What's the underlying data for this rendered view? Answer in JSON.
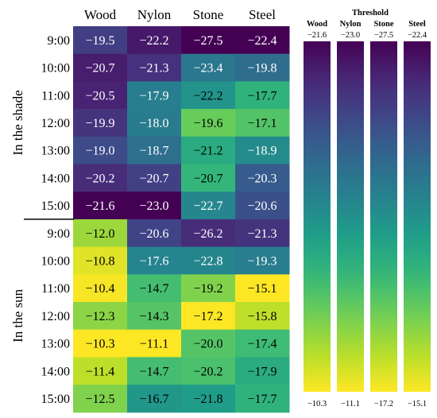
{
  "chart_data": {
    "type": "heatmap",
    "columns": [
      "Wood",
      "Nylon",
      "Stone",
      "Steel"
    ],
    "groups": [
      {
        "label": "In the shade",
        "rows": [
          {
            "time": "9:00",
            "values": [
              "−19.5",
              "−22.2",
              "−27.5",
              "−22.4"
            ]
          },
          {
            "time": "10:00",
            "values": [
              "−20.7",
              "−21.3",
              "−23.4",
              "−19.8"
            ]
          },
          {
            "time": "11:00",
            "values": [
              "−20.5",
              "−17.9",
              "−22.2",
              "−17.7"
            ]
          },
          {
            "time": "12:00",
            "values": [
              "−19.9",
              "−18.0",
              "−19.6",
              "−17.1"
            ]
          },
          {
            "time": "13:00",
            "values": [
              "−19.0",
              "−18.7",
              "−21.2",
              "−18.9"
            ]
          },
          {
            "time": "14:00",
            "values": [
              "−20.2",
              "−20.7",
              "−20.7",
              "−20.3"
            ]
          },
          {
            "time": "15:00",
            "values": [
              "−21.6",
              "−23.0",
              "−22.7",
              "−20.6"
            ]
          }
        ]
      },
      {
        "label": "In the sun",
        "rows": [
          {
            "time": "9:00",
            "values": [
              "−12.0",
              "−20.6",
              "−26.2",
              "−21.3"
            ]
          },
          {
            "time": "10:00",
            "values": [
              "−10.8",
              "−17.6",
              "−22.8",
              "−19.3"
            ]
          },
          {
            "time": "11:00",
            "values": [
              "−10.4",
              "−14.7",
              "−19.2",
              "−15.1"
            ]
          },
          {
            "time": "12:00",
            "values": [
              "−12.3",
              "−14.3",
              "−17.2",
              "−15.8"
            ]
          },
          {
            "time": "13:00",
            "values": [
              "−10.3",
              "−11.1",
              "−20.0",
              "−17.4"
            ]
          },
          {
            "time": "14:00",
            "values": [
              "−11.4",
              "−14.7",
              "−20.2",
              "−17.9"
            ]
          },
          {
            "time": "15:00",
            "values": [
              "−12.5",
              "−16.7",
              "−21.8",
              "−17.7"
            ]
          }
        ]
      }
    ],
    "colorbars": {
      "title": "Threshold",
      "bars": [
        {
          "label": "Wood",
          "min": "−21.6",
          "max": "−10.3"
        },
        {
          "label": "Nylon",
          "min": "−23.0",
          "max": "−11.1"
        },
        {
          "label": "Stone",
          "min": "−27.5",
          "max": "−17.2"
        },
        {
          "label": "Steel",
          "min": "−22.4",
          "max": "−15.1"
        }
      ]
    },
    "colormap": "viridis",
    "colormap_stops": [
      "#440154",
      "#482878",
      "#3e4989",
      "#31688e",
      "#26828e",
      "#1f9e89",
      "#35b779",
      "#6ece58",
      "#b5de2b",
      "#fde725"
    ]
  }
}
